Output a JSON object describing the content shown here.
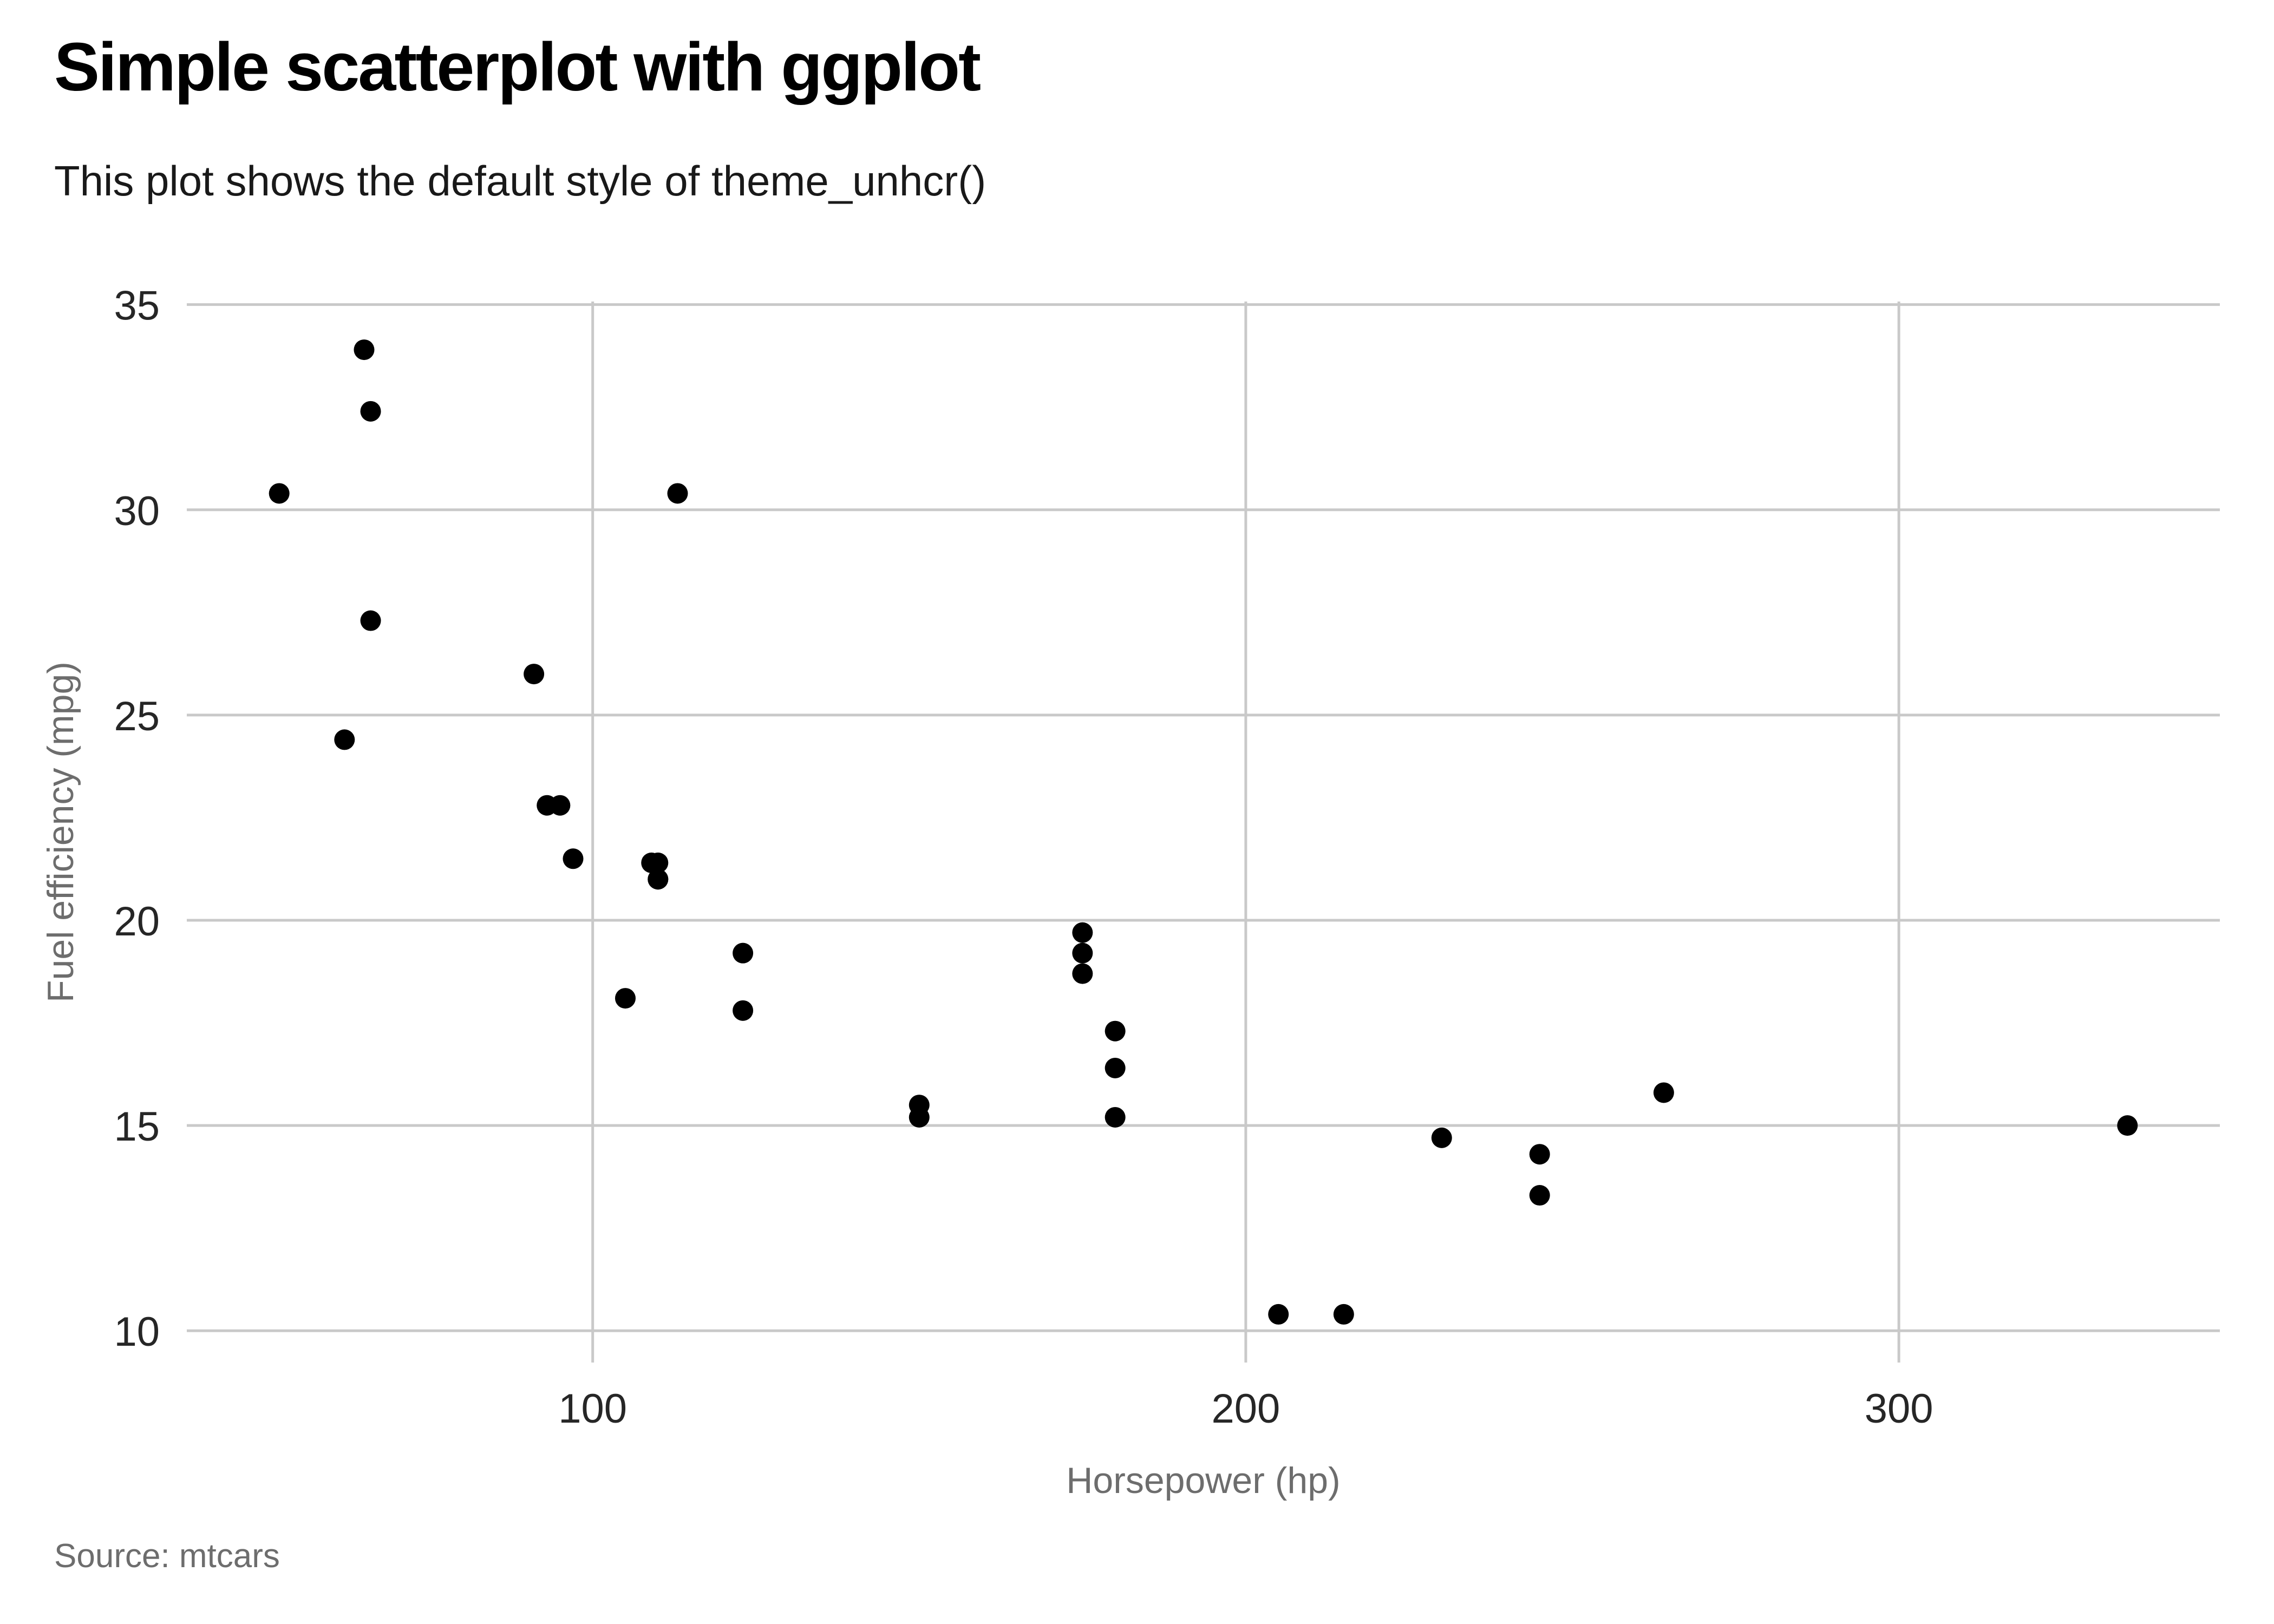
{
  "chart_data": {
    "type": "scatter",
    "title": "Simple scatterplot with ggplot",
    "subtitle": "This plot shows the default style of theme_unhcr()",
    "caption": "Source: mtcars",
    "xlabel": "Horsepower (hp)",
    "ylabel": "Fuel efficiency (mpg)",
    "x_ticks": [
      100,
      200,
      300
    ],
    "y_ticks": [
      10,
      15,
      20,
      25,
      30,
      35
    ],
    "xlim": [
      37.85,
      349.15
    ],
    "ylim": [
      9.225,
      35.075
    ],
    "grid": "major-both",
    "legend_position": "none",
    "colors": {
      "point": "#000000",
      "gridline": "#c9c9c9",
      "tick_text": "#262626",
      "axis_title_text": "#6d6d6d",
      "caption_text": "#6d6d6d",
      "title_text": "#000000",
      "subtitle_text": "#191919",
      "background": "#ffffff"
    },
    "point_radius_px": 19,
    "points": [
      {
        "x": 110,
        "y": 21.0
      },
      {
        "x": 110,
        "y": 21.0
      },
      {
        "x": 93,
        "y": 22.8
      },
      {
        "x": 110,
        "y": 21.4
      },
      {
        "x": 175,
        "y": 18.7
      },
      {
        "x": 105,
        "y": 18.1
      },
      {
        "x": 245,
        "y": 14.3
      },
      {
        "x": 62,
        "y": 24.4
      },
      {
        "x": 95,
        "y": 22.8
      },
      {
        "x": 123,
        "y": 19.2
      },
      {
        "x": 123,
        "y": 17.8
      },
      {
        "x": 180,
        "y": 16.4
      },
      {
        "x": 180,
        "y": 17.3
      },
      {
        "x": 180,
        "y": 15.2
      },
      {
        "x": 205,
        "y": 10.4
      },
      {
        "x": 215,
        "y": 10.4
      },
      {
        "x": 230,
        "y": 14.7
      },
      {
        "x": 66,
        "y": 32.4
      },
      {
        "x": 52,
        "y": 30.4
      },
      {
        "x": 65,
        "y": 33.9
      },
      {
        "x": 97,
        "y": 21.5
      },
      {
        "x": 150,
        "y": 15.5
      },
      {
        "x": 150,
        "y": 15.2
      },
      {
        "x": 245,
        "y": 13.3
      },
      {
        "x": 175,
        "y": 19.2
      },
      {
        "x": 66,
        "y": 27.3
      },
      {
        "x": 91,
        "y": 26.0
      },
      {
        "x": 113,
        "y": 30.4
      },
      {
        "x": 264,
        "y": 15.8
      },
      {
        "x": 175,
        "y": 19.7
      },
      {
        "x": 335,
        "y": 15.0
      },
      {
        "x": 109,
        "y": 21.4
      }
    ]
  }
}
